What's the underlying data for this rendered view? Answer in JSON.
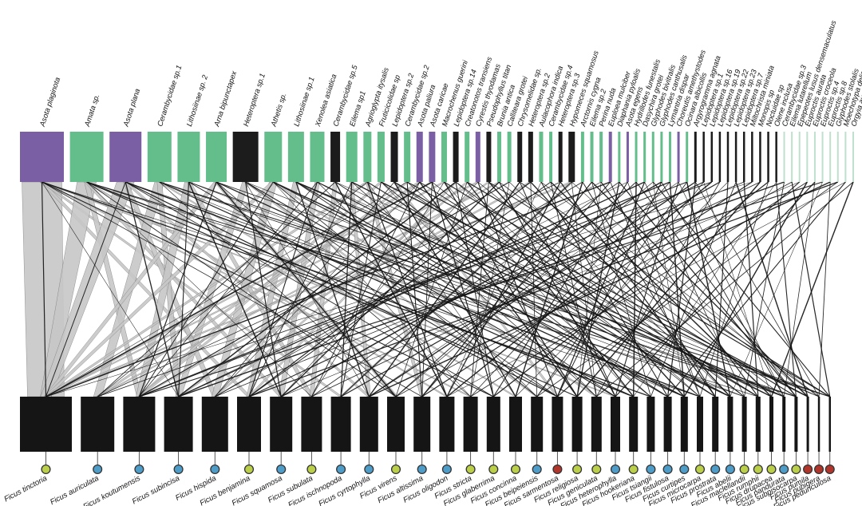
{
  "chart_data": {
    "type": "bipartite-network",
    "title": "",
    "description": "Bipartite interaction network: insect herbivore species (top bars) linked to Ficus host species (bottom bars). Top bar colors mark insect groups (purple = fig-specialists, green = identified taxa, black = unidentified morphospecies, pale green = rare identified taxa). Bottom dots mark Ficus growth form (yellow-green, blue, red).",
    "colors": {
      "green": "#63be8c",
      "pale_green": "#bfe0cc",
      "purple": "#7a5fa5",
      "black": "#1c1c1c",
      "bottom_bar": "#151515",
      "ribbon_gray": "#c6c6c6",
      "ribbon_edge": "#6f6f6f",
      "link_black": "#161616",
      "dot_y": "#bccf4a",
      "dot_b": "#4e9cc8",
      "dot_r": "#b0352b",
      "dot_stroke": "#333333"
    },
    "top_nodes": [
      {
        "label": "Asota plaginota",
        "color": "p",
        "w": 55,
        "deg": 6
      },
      {
        "label": "Amata sp.",
        "color": "g",
        "w": 42,
        "deg": 6
      },
      {
        "label": "Asota plana",
        "color": "p",
        "w": 40,
        "deg": 6
      },
      {
        "label": "Cerambycidae sp.1",
        "color": "g",
        "w": 30,
        "deg": 5
      },
      {
        "label": "Lithosiinae sp. 2",
        "color": "g",
        "w": 28,
        "deg": 5
      },
      {
        "label": "Arna bipunctapex",
        "color": "g",
        "w": 26,
        "deg": 5
      },
      {
        "label": "Heteroptera sp.1",
        "color": "k",
        "w": 32,
        "deg": 5
      },
      {
        "label": "Athetis sp.",
        "color": "g",
        "w": 22,
        "deg": 5
      },
      {
        "label": "Lithosiinae sp.1",
        "color": "g",
        "w": 20,
        "deg": 5
      },
      {
        "label": "Xenolea asiatica",
        "color": "g",
        "w": 18,
        "deg": 5
      },
      {
        "label": "Cerambycidae sp.5",
        "color": "k",
        "w": 12,
        "deg": 4
      },
      {
        "label": "Eilema sp1",
        "color": "g",
        "w": 14,
        "deg": 4
      },
      {
        "label": "Agrioglypta itysalis",
        "color": "g",
        "w": 10,
        "deg": 4
      },
      {
        "label": "Fruticicolidae sp",
        "color": "g",
        "w": 9,
        "deg": 4
      },
      {
        "label": "Lepidoptera sp.2",
        "color": "k",
        "w": 9,
        "deg": 4
      },
      {
        "label": "Cerambycidae sp.2",
        "color": "g",
        "w": 8,
        "deg": 4
      },
      {
        "label": "Asota paliura",
        "color": "p",
        "w": 8,
        "deg": 4
      },
      {
        "label": "Asota caricae",
        "color": "p",
        "w": 8,
        "deg": 4
      },
      {
        "label": "Macrochenus guerini",
        "color": "g",
        "w": 7,
        "deg": 4
      },
      {
        "label": "Lepidoptera sp.14",
        "color": "k",
        "w": 7,
        "deg": 4
      },
      {
        "label": "Creatonotos transiens",
        "color": "g",
        "w": 6,
        "deg": 3
      },
      {
        "label": "Cyrestis thyodamas",
        "color": "p",
        "w": 6,
        "deg": 3
      },
      {
        "label": "Pseudophyllus titan",
        "color": "k",
        "w": 6,
        "deg": 3
      },
      {
        "label": "Brunia antica",
        "color": "g",
        "w": 5,
        "deg": 3
      },
      {
        "label": "Calliteara grotei",
        "color": "g",
        "w": 5,
        "deg": 3
      },
      {
        "label": "Chrysomelidae sp.",
        "color": "k",
        "w": 6,
        "deg": 3
      },
      {
        "label": "Heteroptera sp.2",
        "color": "k",
        "w": 6,
        "deg": 3
      },
      {
        "label": "Aulacophora indica",
        "color": "g",
        "w": 5,
        "deg": 3
      },
      {
        "label": "Cerambycidae sp.4",
        "color": "g",
        "w": 4,
        "deg": 3
      },
      {
        "label": "Heteroptera sp.3",
        "color": "k",
        "w": 5,
        "deg": 3
      },
      {
        "label": "Hypomeces squamosus",
        "color": "k",
        "w": 8,
        "deg": 3
      },
      {
        "label": "Arctornis cygna",
        "color": "g",
        "w": 4,
        "deg": 3
      },
      {
        "label": "Eilema sp.2",
        "color": "g",
        "w": 4,
        "deg": 3
      },
      {
        "label": "Perina nuda",
        "color": "g",
        "w": 4,
        "deg": 3
      },
      {
        "label": "Euploea mulciber",
        "color": "p",
        "w": 4,
        "deg": 3
      },
      {
        "label": "Diaphania pyloalis",
        "color": "g",
        "w": 3,
        "deg": 3
      },
      {
        "label": "Asota egens",
        "color": "p",
        "w": 3,
        "deg": 3
      },
      {
        "label": "Hydrillodes funestalis",
        "color": "g",
        "w": 3,
        "deg": 3
      },
      {
        "label": "Dasychira grotei",
        "color": "g",
        "w": 3,
        "deg": 3
      },
      {
        "label": "Glyphodes bivitralis",
        "color": "g",
        "w": 3,
        "deg": 3
      },
      {
        "label": "Glyphodes canthusalis",
        "color": "g",
        "w": 3,
        "deg": 3
      },
      {
        "label": "Lymantria dispar",
        "color": "g",
        "w": 3,
        "deg": 3
      },
      {
        "label": "Choreutis amethystodes",
        "color": "p",
        "w": 3,
        "deg": 3
      },
      {
        "label": "Ocinara albicollis",
        "color": "g",
        "w": 3,
        "deg": 3
      },
      {
        "label": "Argyrogramma agnata",
        "color": "k",
        "w": 3,
        "deg": 3
      },
      {
        "label": "Lepidoptera sp.1",
        "color": "k",
        "w": 2.5,
        "deg": 3
      },
      {
        "label": "Lepidoptera sp.16",
        "color": "k",
        "w": 2.5,
        "deg": 2
      },
      {
        "label": "Lepidoptera sp.19",
        "color": "k",
        "w": 2.5,
        "deg": 2
      },
      {
        "label": "Lepidoptera sp.22",
        "color": "k",
        "w": 2.5,
        "deg": 2
      },
      {
        "label": "Lepidoptera sp.23",
        "color": "k",
        "w": 2.5,
        "deg": 2
      },
      {
        "label": "Lepidoptera sp.7",
        "color": "k",
        "w": 2.5,
        "deg": 2
      },
      {
        "label": "Miltochrista miniata",
        "color": "k",
        "w": 2.5,
        "deg": 2
      },
      {
        "label": "Monopis sp",
        "color": "k",
        "w": 2.5,
        "deg": 2
      },
      {
        "label": "Noctuidae sp",
        "color": "k",
        "w": 2.5,
        "deg": 2
      },
      {
        "label": "Olene inclusa",
        "color": "k",
        "w": 2.5,
        "deg": 2
      },
      {
        "label": "Cerambycidae sp.3",
        "color": "l",
        "w": 2,
        "deg": 2
      },
      {
        "label": "Eilema lutarellum",
        "color": "l",
        "w": 2,
        "deg": 2
      },
      {
        "label": "Epepeotes lusus densemaculatus",
        "color": "l",
        "w": 2,
        "deg": 2
      },
      {
        "label": "Euproctis aurata",
        "color": "l",
        "w": 2,
        "deg": 2
      },
      {
        "label": "Euproctis croceola",
        "color": "l",
        "w": 2,
        "deg": 2
      },
      {
        "label": "Euproctis sp.4",
        "color": "l",
        "w": 2,
        "deg": 2
      },
      {
        "label": "Euproctis sp.8",
        "color": "l",
        "w": 2,
        "deg": 2
      },
      {
        "label": "Glyphodes stolalis",
        "color": "l",
        "w": 2,
        "deg": 2
      },
      {
        "label": "Moechotypa delicatula",
        "color": "l",
        "w": 2,
        "deg": 2
      },
      {
        "label": "Orgyia australis",
        "color": "l",
        "w": 2,
        "deg": 2
      }
    ],
    "bottom_nodes": [
      {
        "label": "Ficus tinctoria",
        "dot": "y",
        "w": 65
      },
      {
        "label": "Ficus auriculata",
        "dot": "b",
        "w": 42
      },
      {
        "label": "Ficus koutumensis",
        "dot": "b",
        "w": 40
      },
      {
        "label": "Ficus subincisa",
        "dot": "b",
        "w": 36
      },
      {
        "label": "Ficus hispida",
        "dot": "b",
        "w": 33
      },
      {
        "label": "Ficus benjamina",
        "dot": "y",
        "w": 30
      },
      {
        "label": "Ficus squamosa",
        "dot": "b",
        "w": 28
      },
      {
        "label": "Ficus subulata",
        "dot": "y",
        "w": 26
      },
      {
        "label": "Ficus ischnopoda",
        "dot": "b",
        "w": 25
      },
      {
        "label": "Ficus cyrtophylla",
        "dot": "b",
        "w": 23
      },
      {
        "label": "Ficus virens",
        "dot": "y",
        "w": 22
      },
      {
        "label": "Ficus altissima",
        "dot": "b",
        "w": 21
      },
      {
        "label": "Ficus oligodon",
        "dot": "b",
        "w": 19
      },
      {
        "label": "Ficus stricta",
        "dot": "y",
        "w": 18
      },
      {
        "label": "Ficus glaberrima",
        "dot": "y",
        "w": 17
      },
      {
        "label": "Ficus concinna",
        "dot": "y",
        "w": 16
      },
      {
        "label": "Ficus beipeiensis",
        "dot": "b",
        "w": 15
      },
      {
        "label": "Ficus sarmentosa",
        "dot": "r",
        "w": 14
      },
      {
        "label": "Ficus religiosa",
        "dot": "y",
        "w": 13
      },
      {
        "label": "Ficus geniculata",
        "dot": "y",
        "w": 13
      },
      {
        "label": "Ficus heterophylla",
        "dot": "b",
        "w": 12
      },
      {
        "label": "Ficus hookeriana",
        "dot": "y",
        "w": 11
      },
      {
        "label": "Ficus tsiangii",
        "dot": "b",
        "w": 10
      },
      {
        "label": "Ficus fistulosa",
        "dot": "b",
        "w": 10
      },
      {
        "label": "Ficus curtipes",
        "dot": "b",
        "w": 9
      },
      {
        "label": "Ficus microcarpa",
        "dot": "y",
        "w": 8
      },
      {
        "label": "Ficus prostrata",
        "dot": "b",
        "w": 8
      },
      {
        "label": "Ficus abelii",
        "dot": "b",
        "w": 7
      },
      {
        "label": "Ficus maclellandii",
        "dot": "y",
        "w": 6
      },
      {
        "label": "Ficus rumphii",
        "dot": "y",
        "w": 6
      },
      {
        "label": "Ficus drupacea",
        "dot": "y",
        "w": 5
      },
      {
        "label": "Ficus pandurata",
        "dot": "b",
        "w": 4
      },
      {
        "label": "Ficus subpisocarpa",
        "dot": "y",
        "w": 4
      },
      {
        "label": "Ficus pumila",
        "dot": "r",
        "w": 3
      },
      {
        "label": "Ficus pubigera",
        "dot": "r",
        "w": 2.5
      },
      {
        "label": "Ficus pedunculosa",
        "dot": "r",
        "w": 2.5
      }
    ],
    "ribbons": [
      [
        0,
        0,
        50,
        46
      ],
      [
        0,
        5,
        5,
        5
      ],
      [
        0,
        8,
        4,
        4
      ],
      [
        0,
        13,
        3,
        3
      ],
      [
        0,
        20,
        3,
        3
      ],
      [
        1,
        0,
        24,
        14
      ],
      [
        1,
        2,
        6,
        6
      ],
      [
        1,
        6,
        5,
        5
      ],
      [
        1,
        12,
        3,
        3
      ],
      [
        2,
        0,
        22,
        13
      ],
      [
        2,
        4,
        6,
        6
      ],
      [
        2,
        9,
        4,
        4
      ],
      [
        3,
        1,
        12,
        10
      ],
      [
        3,
        3,
        6,
        6
      ],
      [
        3,
        15,
        3,
        3
      ],
      [
        4,
        2,
        10,
        8
      ],
      [
        4,
        7,
        5,
        5
      ],
      [
        5,
        0,
        6,
        5
      ],
      [
        5,
        10,
        5,
        5
      ],
      [
        6,
        3,
        8,
        7
      ],
      [
        6,
        16,
        3,
        3
      ],
      [
        7,
        4,
        10,
        8
      ],
      [
        7,
        0,
        6,
        5
      ],
      [
        7,
        19,
        3,
        3
      ],
      [
        8,
        5,
        7,
        6
      ],
      [
        9,
        6,
        6,
        6
      ],
      [
        10,
        7,
        5,
        5
      ],
      [
        11,
        9,
        4,
        4
      ],
      [
        12,
        0,
        5,
        4
      ],
      [
        12,
        11,
        4,
        4
      ],
      [
        13,
        2,
        4,
        4
      ],
      [
        14,
        17,
        3,
        3
      ],
      [
        15,
        2,
        4,
        4
      ],
      [
        16,
        1,
        5,
        4
      ],
      [
        17,
        0,
        4,
        3
      ],
      [
        18,
        0,
        4,
        3
      ],
      [
        19,
        5,
        3,
        3
      ],
      [
        20,
        4,
        3,
        3
      ],
      [
        21,
        0,
        4,
        3
      ],
      [
        22,
        3,
        3,
        3
      ],
      [
        23,
        1,
        3,
        3
      ],
      [
        26,
        2,
        4,
        3
      ],
      [
        30,
        0,
        5,
        4
      ],
      [
        30,
        8,
        4,
        3
      ]
    ]
  }
}
